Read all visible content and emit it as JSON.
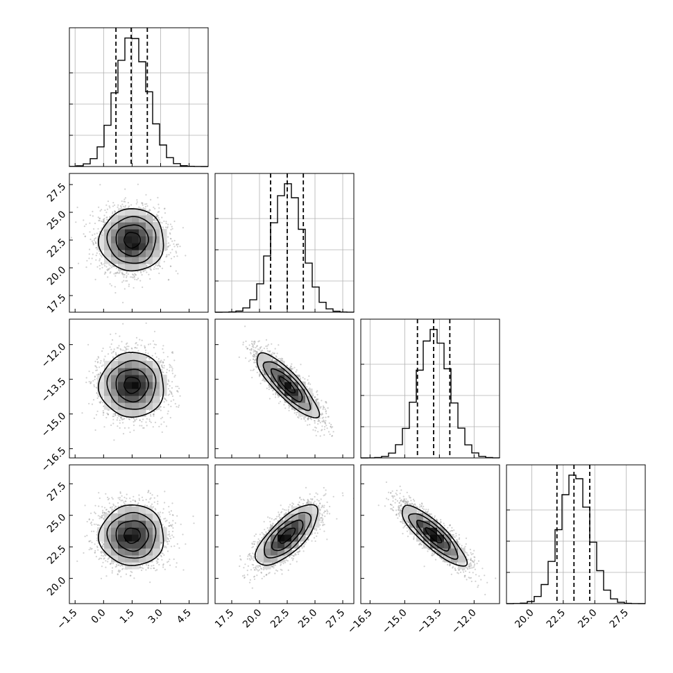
{
  "chart_data": {
    "type": "corner",
    "title": "",
    "parameters": [
      {
        "range": [
          -1.8,
          5.5
        ],
        "ticks": [
          -1.5,
          0.0,
          1.5,
          3.0,
          4.5
        ],
        "tick_labels": [
          "−1.5",
          "0.0",
          "1.5",
          "3.0",
          "4.5"
        ],
        "mean": 1.5,
        "sigma": 0.85,
        "quantiles": [
          0.65,
          1.45,
          2.3
        ]
      },
      {
        "range": [
          16.0,
          28.5
        ],
        "ticks": [
          17.5,
          20.0,
          22.5,
          25.0,
          27.5
        ],
        "tick_labels": [
          "17.5",
          "20.0",
          "22.5",
          "25.0",
          "27.5"
        ],
        "mean": 22.5,
        "sigma": 1.4,
        "quantiles": [
          21.0,
          22.5,
          23.95
        ]
      },
      {
        "range": [
          -16.9,
          -10.9
        ],
        "ticks": [
          -16.5,
          -15.0,
          -13.5,
          -12.0
        ],
        "tick_labels": [
          "−16.5",
          "−15.0",
          "−13.5",
          "−12.0"
        ],
        "mean": -13.75,
        "sigma": 0.7,
        "quantiles": [
          -14.45,
          -13.75,
          -13.05
        ]
      },
      {
        "range": [
          18.0,
          29.0
        ],
        "ticks": [
          20.0,
          22.5,
          25.0,
          27.5
        ],
        "tick_labels": [
          "20.0",
          "22.5",
          "25.0",
          "27.5"
        ],
        "mean": 23.4,
        "sigma": 1.2,
        "quantiles": [
          22.0,
          23.35,
          24.6
        ]
      }
    ],
    "correlations": {
      "1-0": 0.0,
      "2-0": 0.0,
      "2-1": -0.85,
      "3-0": 0.0,
      "3-1": 0.72,
      "3-2": -0.85
    },
    "histogram_bins": 20,
    "contour_levels_sigma": [
      0.5,
      1.0,
      1.5,
      2.0
    ],
    "grid": true,
    "colors": {
      "line": "#000000",
      "points": "#9a9a9a",
      "grid": "#b0b0b0"
    }
  }
}
